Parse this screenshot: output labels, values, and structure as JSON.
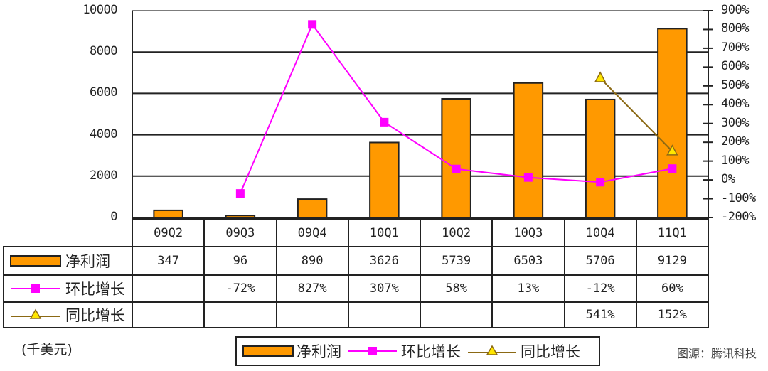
{
  "chart_data": {
    "type": "bar",
    "title": "",
    "categories": [
      "09Q2",
      "09Q3",
      "09Q4",
      "10Q1",
      "10Q2",
      "10Q3",
      "10Q4",
      "11Q1"
    ],
    "series": [
      {
        "name": "净利润",
        "type": "bar",
        "axis": "left",
        "color": "#FF9900",
        "values": [
          347,
          96,
          890,
          3626,
          5739,
          6503,
          5706,
          9129
        ],
        "labels": [
          "347",
          "96",
          "890",
          "3626",
          "5739",
          "6503",
          "5706",
          "9129"
        ]
      },
      {
        "name": "环比增长",
        "type": "line",
        "axis": "right",
        "color": "#FF00FF",
        "marker": "square",
        "values": [
          null,
          -72,
          827,
          307,
          58,
          13,
          -12,
          60
        ],
        "labels": [
          "",
          "-72%",
          "827%",
          "307%",
          "58%",
          "13%",
          "-12%",
          "60%"
        ]
      },
      {
        "name": "同比增长",
        "type": "line",
        "axis": "right",
        "color": "#8B6914",
        "marker": "triangle",
        "values": [
          null,
          null,
          null,
          null,
          null,
          null,
          541,
          152
        ],
        "labels": [
          "",
          "",
          "",
          "",
          "",
          "",
          "541%",
          "152%"
        ]
      }
    ],
    "left_axis": {
      "label": "(千美元)",
      "ylim": [
        0,
        10000
      ],
      "ticks": [
        "0",
        "2000",
        "4000",
        "6000",
        "8000",
        "10000"
      ]
    },
    "right_axis": {
      "ylim": [
        -200,
        900
      ],
      "ticks": [
        "-200%",
        "-100%",
        "0%",
        "100%",
        "200%",
        "300%",
        "400%",
        "500%",
        "600%",
        "700%",
        "800%",
        "900%"
      ]
    },
    "grid": true,
    "legend_position": "bottom"
  },
  "unit_label": "(千美元)",
  "source": "图源：腾讯科技",
  "colors": {
    "bar": "#FF9900",
    "qoq": "#FF00FF",
    "yoy_line": "#8B6914",
    "yoy_marker": "#FFE600"
  }
}
